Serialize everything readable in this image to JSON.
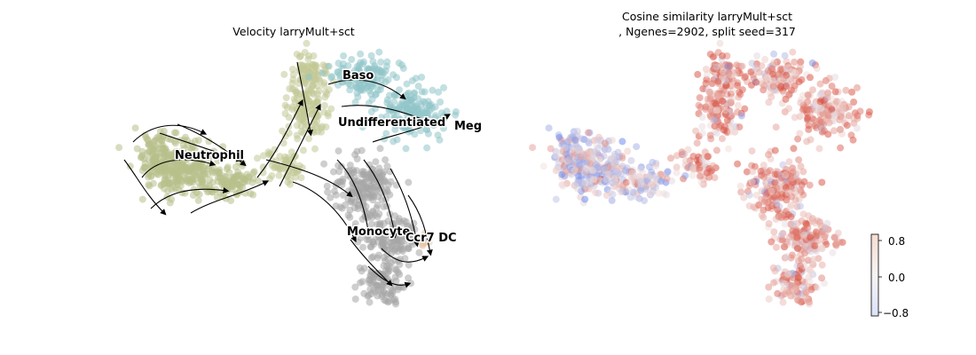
{
  "chart_data": [
    {
      "type": "scatter",
      "subtype": "umap-velocity-stream",
      "title": "Velocity larryMult+sct",
      "axes_visible": false,
      "legend": "on-data",
      "cluster_labels": [
        {
          "name": "Baso",
          "color": "#8fc4c8"
        },
        {
          "name": "Undifferentiated",
          "color": "#c2c995"
        },
        {
          "name": "Meg",
          "color": "#8fc4c8"
        },
        {
          "name": "Neutrophil",
          "color": "#b8c08b"
        },
        {
          "name": "Monocyte",
          "color": "#a6a6a6"
        },
        {
          "name": "Ccr7 DC",
          "color": "#e8c6a8"
        }
      ],
      "streamlines": true
    },
    {
      "type": "scatter",
      "subtype": "umap-colored-by-value",
      "title_line1": "Cosine similarity larryMult+sct",
      "title_line2": ", Ngenes=2902, split seed=317",
      "axes_visible": false,
      "colormap": "coolwarm",
      "colorbar": {
        "vmin": -0.8,
        "vmax": 0.8,
        "ticks": [
          {
            "value": 0.8,
            "label": "0.8"
          },
          {
            "value": 0.0,
            "label": "0.0"
          },
          {
            "value": -0.8,
            "label": "−0.8"
          }
        ]
      }
    }
  ]
}
